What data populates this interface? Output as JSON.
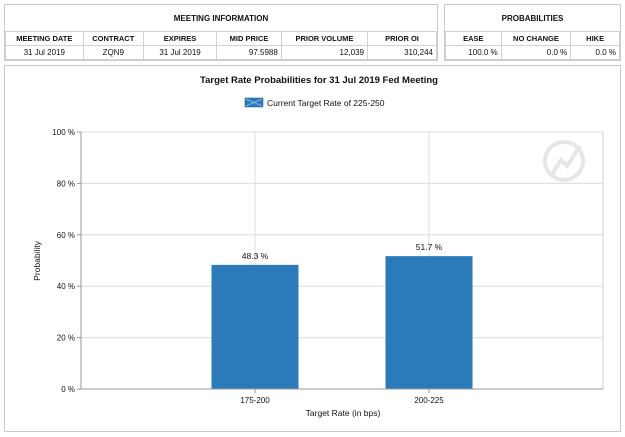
{
  "meeting_info": {
    "title": "MEETING INFORMATION",
    "headers": [
      "MEETING DATE",
      "CONTRACT",
      "EXPIRES",
      "MID PRICE",
      "PRIOR VOLUME",
      "PRIOR OI"
    ],
    "values": [
      "31 Jul 2019",
      "ZQN9",
      "31 Jul 2019",
      "97.5988",
      "12,039",
      "310,244"
    ]
  },
  "probabilities": {
    "title": "PROBABILITIES",
    "headers": [
      "EASE",
      "NO CHANGE",
      "HIKE"
    ],
    "values": [
      "100.0 %",
      "0.0 %",
      "0.0 %"
    ]
  },
  "chart_data": {
    "type": "bar",
    "title": "Target Rate Probabilities for 31 Jul 2019 Fed Meeting",
    "legend": "Current Target Rate of 225-250",
    "legend_position": "top-center",
    "categories": [
      "175-200",
      "200-225"
    ],
    "values": [
      48.3,
      51.7
    ],
    "value_labels": [
      "48.3 %",
      "51.7 %"
    ],
    "xlabel": "Target Rate (in bps)",
    "ylabel": "Probability",
    "ylim": [
      0,
      100
    ],
    "yticks": [
      0,
      20,
      40,
      60,
      80,
      100
    ],
    "ytick_labels": [
      "0 %",
      "20 %",
      "40 %",
      "60 %",
      "80 %",
      "100 %"
    ],
    "grid": true,
    "bar_color": "#2b7bba"
  }
}
